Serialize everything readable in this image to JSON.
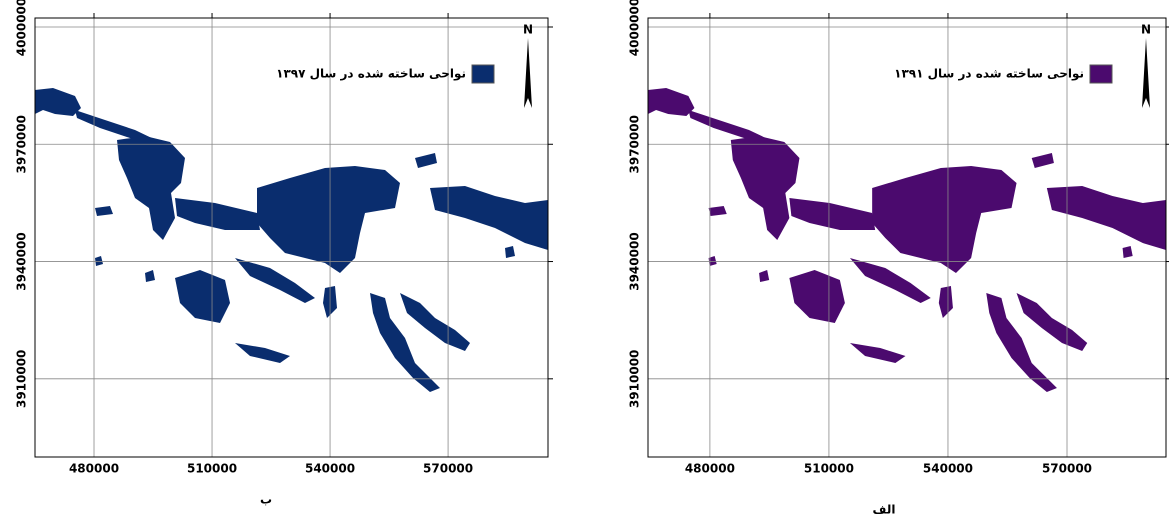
{
  "panels": [
    {
      "caption": "ب",
      "legend": {
        "label": "نواحی ساخته شده در سال ۱۳۹۷",
        "color": "#0a2d6e"
      },
      "north": "N",
      "xlim": [
        465000,
        595400
      ],
      "ylim": [
        3890000,
        4002300
      ],
      "xticks": [
        480000,
        510000,
        540000,
        570000
      ],
      "yticks": [
        3910000,
        3940000,
        3970000,
        4000000
      ]
    },
    {
      "caption": "الف",
      "legend": {
        "label": "نواحی ساخته شده در سال ۱۳۹۱",
        "color": "#4b0a6e"
      },
      "north": "N",
      "xlim": [
        464400,
        594950
      ],
      "ylim": [
        3890000,
        4002300
      ],
      "xticks": [
        480000,
        510000,
        540000,
        570000
      ],
      "yticks": [
        3910000,
        3940000,
        3970000,
        4000000
      ]
    }
  ]
}
